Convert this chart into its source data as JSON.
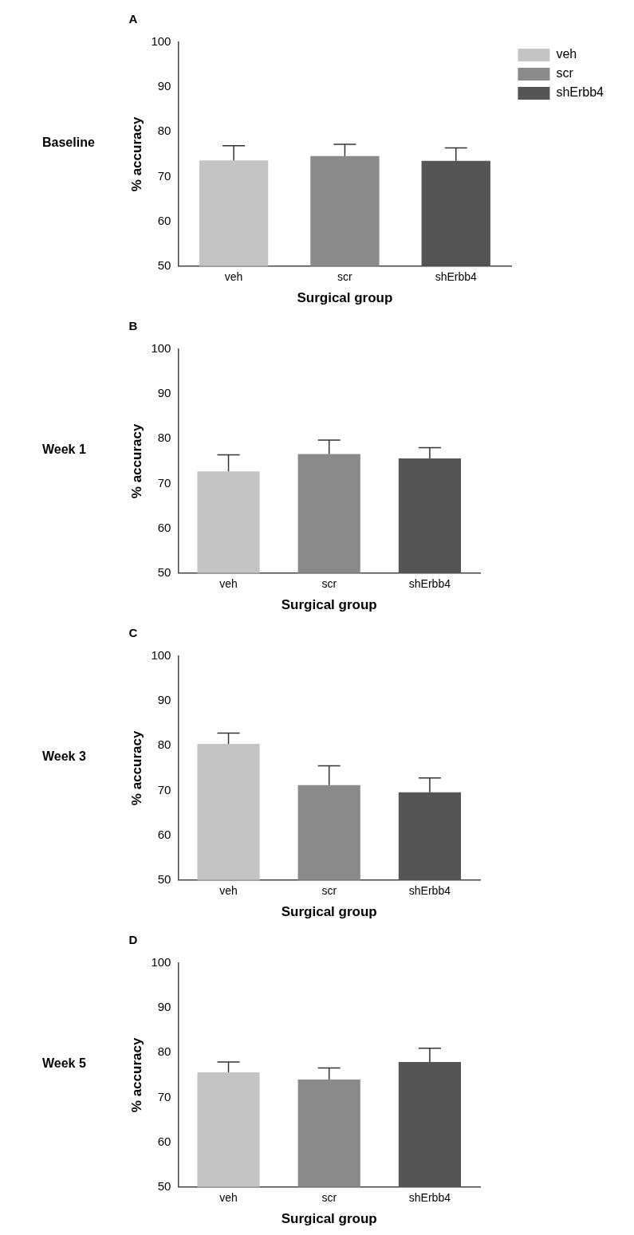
{
  "chart_data": [
    {
      "type": "bar",
      "title": "A",
      "annotations": [
        "Baseline"
      ],
      "xlabel": "Surgical group",
      "ylabel": "% accuracy",
      "categories": [
        "veh",
        "scr",
        "shErbb4"
      ],
      "ylim": [
        50,
        100
      ],
      "yticks": [
        50,
        60,
        70,
        80,
        90,
        100
      ],
      "legend": "top right",
      "series": [
        {
          "name": "veh",
          "color": "#c4c4c4",
          "values": [
            73.6,
            null,
            null
          ],
          "errors": [
            [
              73.6,
              76.9
            ],
            null,
            null
          ]
        },
        {
          "name": "scr",
          "color": "#8a8a8a",
          "values": [
            null,
            74.6,
            null
          ],
          "errors": [
            null,
            [
              74.6,
              77.2
            ],
            null
          ]
        },
        {
          "name": "shErbb4",
          "color": "#555555",
          "values": [
            null,
            null,
            73.5
          ],
          "errors": [
            null,
            null,
            [
              73.5,
              76.4
            ]
          ]
        }
      ]
    },
    {
      "type": "bar",
      "title": "B",
      "annotations": [
        "Week 1"
      ],
      "xlabel": "Surgical group",
      "ylabel": "% accuracy",
      "categories": [
        "veh",
        "scr",
        "shErbb4"
      ],
      "ylim": [
        50,
        100
      ],
      "yticks": [
        50,
        60,
        70,
        80,
        90,
        100
      ],
      "series": [
        {
          "color": "#c4c4c4",
          "values": [
            72.7,
            null,
            null
          ],
          "errors": [
            [
              72.7,
              76.4
            ],
            null,
            null
          ]
        },
        {
          "color": "#8a8a8a",
          "values": [
            null,
            76.6,
            null
          ],
          "errors": [
            null,
            [
              76.6,
              79.7
            ],
            null
          ]
        },
        {
          "color": "#555555",
          "values": [
            null,
            null,
            75.6
          ],
          "errors": [
            null,
            null,
            [
              75.6,
              78.0
            ]
          ]
        }
      ]
    },
    {
      "type": "bar",
      "title": "C",
      "annotations": [
        "Week 3"
      ],
      "xlabel": "Surgical group",
      "ylabel": "% accuracy",
      "categories": [
        "veh",
        "scr",
        "shErbb4"
      ],
      "ylim": [
        50,
        100
      ],
      "yticks": [
        50,
        60,
        70,
        80,
        90,
        100
      ],
      "series": [
        {
          "color": "#c4c4c4",
          "values": [
            80.4,
            null,
            null
          ],
          "errors": [
            [
              80.4,
              82.8
            ],
            null,
            null
          ]
        },
        {
          "color": "#8a8a8a",
          "values": [
            null,
            71.2,
            null
          ],
          "errors": [
            null,
            [
              71.2,
              75.5
            ],
            null
          ]
        },
        {
          "color": "#555555",
          "values": [
            null,
            null,
            69.6
          ],
          "errors": [
            null,
            null,
            [
              69.6,
              72.8
            ]
          ]
        }
      ]
    },
    {
      "type": "bar",
      "title": "D",
      "annotations": [
        "Week 5"
      ],
      "xlabel": "Surgical group",
      "ylabel": "% accuracy",
      "categories": [
        "veh",
        "scr",
        "shErbb4"
      ],
      "ylim": [
        50,
        100
      ],
      "yticks": [
        50,
        60,
        70,
        80,
        90,
        100
      ],
      "series": [
        {
          "color": "#c4c4c4",
          "values": [
            75.6,
            null,
            null
          ],
          "errors": [
            [
              75.6,
              77.9
            ],
            null,
            null
          ]
        },
        {
          "color": "#8a8a8a",
          "values": [
            null,
            74.0,
            null
          ],
          "errors": [
            null,
            [
              74.0,
              76.6
            ],
            null
          ]
        },
        {
          "color": "#555555",
          "values": [
            null,
            null,
            77.9
          ],
          "errors": [
            null,
            null,
            [
              77.9,
              81.0
            ]
          ]
        }
      ]
    }
  ]
}
